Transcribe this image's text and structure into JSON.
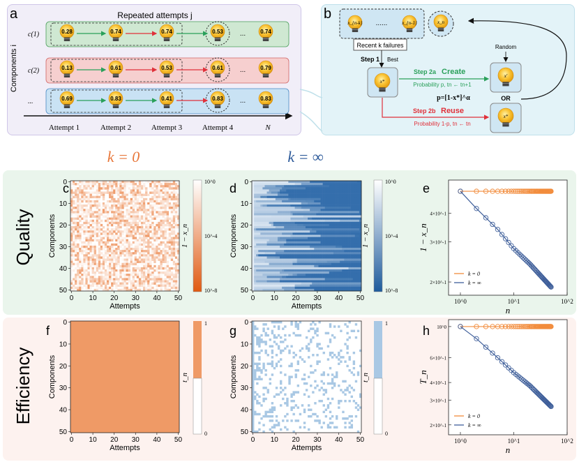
{
  "panels": {
    "a": "a",
    "b": "b",
    "c": "c",
    "d": "d",
    "e": "e",
    "f": "f",
    "g": "g",
    "h": "h"
  },
  "schematic_a": {
    "title": "Repeated attempts j",
    "yaxis_label": "Components i",
    "row_labels": [
      "c(1)",
      "c(2)",
      "..."
    ],
    "rows": [
      {
        "values": [
          "0.28",
          "0.74",
          "0.74",
          "0.53",
          "0.74"
        ],
        "color": "#cfe8d2",
        "arrows": [
          "green",
          "red",
          "green"
        ]
      },
      {
        "values": [
          "0.13",
          "0.61",
          "0.53",
          "0.61",
          "0.79"
        ],
        "color": "#f6cfcf",
        "arrows": [
          "green",
          "red",
          "red"
        ]
      },
      {
        "values": [
          "0.69",
          "0.83",
          "0.41",
          "0.83",
          "0.83"
        ],
        "color": "#c9e2f4",
        "arrows": [
          "green",
          "green",
          "red"
        ]
      }
    ],
    "attempt_labels": [
      "Attempt 1",
      "Attempt 2",
      "Attempt 3",
      "Attempt 4",
      "N"
    ],
    "ellipsis": "..."
  },
  "schematic_b": {
    "pool_first": "x_{n-k}",
    "pool_dots": "......",
    "pool_last": "x_{n-1}",
    "current": "x_n",
    "recent_label": "Recent k failures",
    "step1": "Step 1",
    "best": "Best",
    "xstar": "x*",
    "step2a": "Step 2a",
    "create": "Create",
    "prob_a": "Probability p, tn ← tn+1",
    "formula": "p=[1-x*]^α",
    "step2b": "Step 2b",
    "reuse": "Reuse",
    "prob_b": "Probability 1-p, tn ← tn",
    "random": "Random",
    "x_new": "x'",
    "x_reuse": "x*",
    "or": "OR"
  },
  "k_labels": {
    "k0": "k = 0",
    "kinf": "k = ∞",
    "k0_color": "#e8773a",
    "kinf_color": "#2d5a9a"
  },
  "section_labels": {
    "quality": "Quality",
    "efficiency": "Efficiency"
  },
  "heatmaps": {
    "xlabel": "Attempts",
    "ylabel": "Components",
    "ticks": [
      "0",
      "10",
      "20",
      "30",
      "40",
      "50"
    ],
    "colorbar_quality_label": "1 − x_n",
    "colorbar_quality_ticks": [
      "10^0",
      "10^-4",
      "10^-8"
    ],
    "colorbar_eff_label": "t_n",
    "colorbar_eff_ticks": [
      "1",
      "0"
    ],
    "orange": "#ef9a66",
    "blue": "#3e7ab8"
  },
  "chart_e": {
    "type": "line",
    "xlabel": "n",
    "ylabel": "1 − x_n",
    "xscale": "log",
    "yscale": "log",
    "xticks": [
      "10^0",
      "10^1",
      "10^2"
    ],
    "yticks": [
      "4×10^-1",
      "3×10^-1",
      "2×10^-1"
    ],
    "series": [
      {
        "name": "k = 0",
        "color": "#f28c3c",
        "x_range": [
          1,
          50
        ],
        "y": 0.5
      },
      {
        "name": "k = ∞",
        "color": "#3f5f9a",
        "x_range": [
          1,
          50
        ],
        "y_start": 0.5,
        "y_end": 0.19
      }
    ]
  },
  "chart_h": {
    "type": "line",
    "xlabel": "n",
    "ylabel": "T_n",
    "xscale": "log",
    "yscale": "log",
    "xticks": [
      "10^0",
      "10^1",
      "10^2"
    ],
    "yticks": [
      "10^0",
      "6×10^-1",
      "4×10^-1",
      "3×10^-1",
      "2×10^-1"
    ],
    "series": [
      {
        "name": "k = 0",
        "color": "#f28c3c",
        "x_range": [
          1,
          50
        ],
        "y": 1.0
      },
      {
        "name": "k = ∞",
        "color": "#3f5f9a",
        "x_range": [
          1,
          50
        ],
        "y_start": 1.0,
        "y_end": 0.27
      }
    ]
  },
  "chart_data": [
    {
      "type": "line",
      "xlabel": "n",
      "ylabel": "1 − x_n",
      "xlim": [
        0.5,
        100
      ],
      "series": [
        {
          "name": "k = 0",
          "x": [
            1,
            50
          ],
          "y": [
            0.5,
            0.5
          ]
        },
        {
          "name": "k = ∞",
          "x": [
            1,
            2,
            5,
            10,
            20,
            50
          ],
          "y": [
            0.5,
            0.42,
            0.34,
            0.28,
            0.24,
            0.19
          ]
        }
      ]
    },
    {
      "type": "line",
      "xlabel": "n",
      "ylabel": "T_n",
      "xlim": [
        0.5,
        100
      ],
      "series": [
        {
          "name": "k = 0",
          "x": [
            1,
            50
          ],
          "y": [
            1.0,
            1.0
          ]
        },
        {
          "name": "k = ∞",
          "x": [
            1,
            2,
            5,
            10,
            20,
            50
          ],
          "y": [
            1.0,
            0.82,
            0.6,
            0.47,
            0.38,
            0.27
          ]
        }
      ]
    }
  ]
}
